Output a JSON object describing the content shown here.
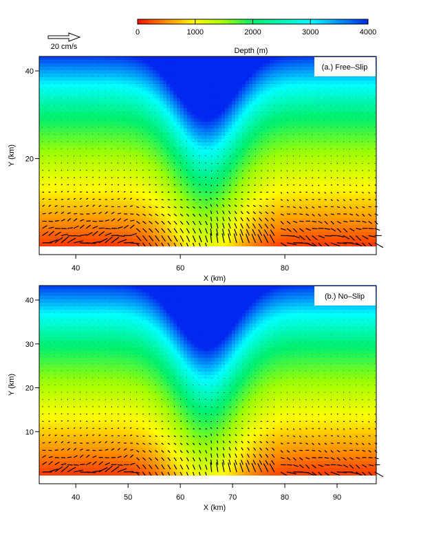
{
  "chart_data": [
    {
      "type": "heatmap",
      "title": "(a.) Free–Slip",
      "xlabel": "X (km)",
      "ylabel": "Y (km)",
      "xlim": [
        33,
        97.5
      ],
      "ylim": [
        0,
        43.3
      ],
      "xticks": [
        "40",
        "60",
        "80"
      ],
      "xtick_values": [
        40,
        60,
        80
      ],
      "yticks": [
        "20",
        "40"
      ],
      "ytick_values": [
        20,
        40
      ],
      "field": "Depth (m)",
      "canyon_center_x": 65,
      "canyon_head_y": 15,
      "vectors": "velocity arrows, strongest near y<15 km, recirculating eddies on either side of canyon"
    },
    {
      "type": "heatmap",
      "title": "(b.) No–Slip",
      "xlabel": "X (km)",
      "ylabel": "Y (km)",
      "xlim": [
        33,
        97.5
      ],
      "ylim": [
        0,
        43.3
      ],
      "xticks": [
        "40",
        "50",
        "60",
        "70",
        "80",
        "90"
      ],
      "xtick_values": [
        40,
        50,
        60,
        70,
        80,
        90
      ],
      "yticks": [
        "10",
        "20",
        "30",
        "40"
      ],
      "ytick_values": [
        10,
        20,
        30,
        40
      ],
      "field": "Depth (m)",
      "canyon_center_x": 65,
      "canyon_head_y": 15,
      "vectors": "velocity arrows, weaker than free-slip, oriented toward canyon"
    }
  ],
  "colorbar": {
    "label": "Depth (m)",
    "ticks": [
      "0",
      "1000",
      "2000",
      "3000",
      "4000"
    ],
    "tick_values": [
      0,
      1000,
      2000,
      3000,
      4000
    ],
    "stops": [
      {
        "v": 0,
        "c": "#ff1000"
      },
      {
        "v": 500,
        "c": "#ff9000"
      },
      {
        "v": 1000,
        "c": "#ffff00"
      },
      {
        "v": 1500,
        "c": "#a0ff00"
      },
      {
        "v": 2000,
        "c": "#00f070"
      },
      {
        "v": 3000,
        "c": "#00ffff"
      },
      {
        "v": 4000,
        "c": "#0028f0"
      }
    ]
  },
  "scale_arrow": {
    "label": "20 cm/s",
    "value_cm_s": 20
  }
}
